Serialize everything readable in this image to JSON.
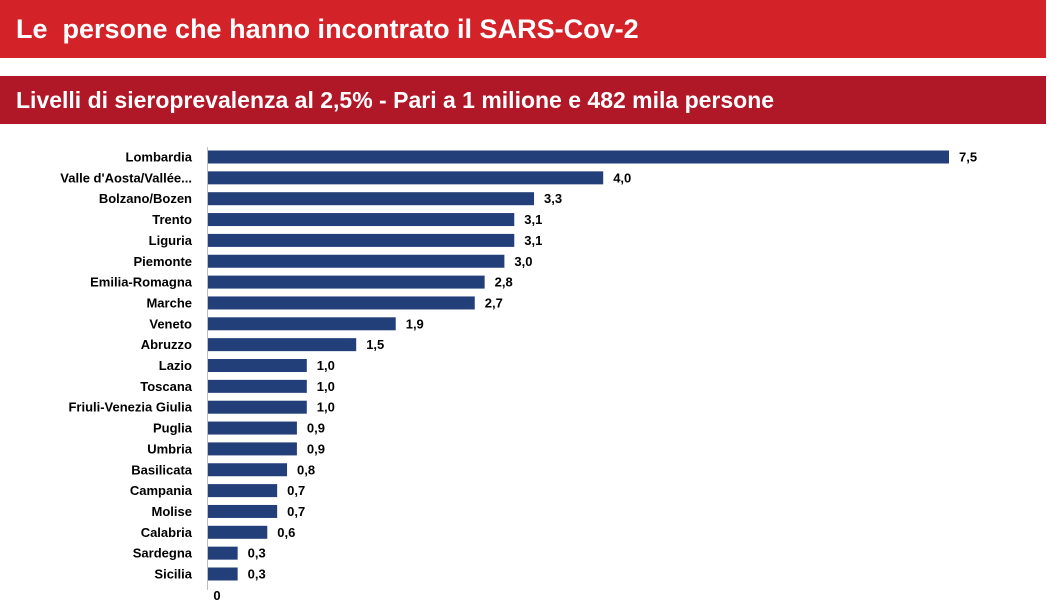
{
  "header": {
    "title": "Le  persone che hanno incontrato il SARS-Cov-2",
    "subtitle": "Livelli di sieroprevalenza al 2,5% - Pari a 1 milione e 482 mila persone"
  },
  "colors": {
    "title_banner": "#d42229",
    "subtitle_banner": "#b01727",
    "bar": "#233f7a"
  },
  "chart_data": {
    "type": "bar",
    "orientation": "horizontal",
    "categories": [
      "Lombardia",
      "Valle d'Aosta/Vallée...",
      "Bolzano/Bozen",
      "Trento",
      "Liguria",
      "Piemonte",
      "Emilia-Romagna",
      "Marche",
      "Veneto",
      "Abruzzo",
      "Lazio",
      "Toscana",
      "Friuli-Venezia Giulia",
      "Puglia",
      "Umbria",
      "Basilicata",
      "Campania",
      "Molise",
      "Calabria",
      "Sardegna",
      "Sicilia"
    ],
    "values": [
      7.5,
      4.0,
      3.3,
      3.1,
      3.1,
      3.0,
      2.8,
      2.7,
      1.9,
      1.5,
      1.0,
      1.0,
      1.0,
      0.9,
      0.9,
      0.8,
      0.7,
      0.7,
      0.6,
      0.3,
      0.3
    ],
    "value_labels": [
      "7,5",
      "4,0",
      "3,3",
      "3,1",
      "3,1",
      "3,0",
      "2,8",
      "2,7",
      "1,9",
      "1,5",
      "1,0",
      "1,0",
      "1,0",
      "0,9",
      "0,9",
      "0,8",
      "0,7",
      "0,7",
      "0,6",
      "0,3",
      "0,3"
    ],
    "x_tick_labels": [
      "0"
    ],
    "xlim": [
      0,
      7.5
    ],
    "grid": false,
    "legend": "none"
  }
}
